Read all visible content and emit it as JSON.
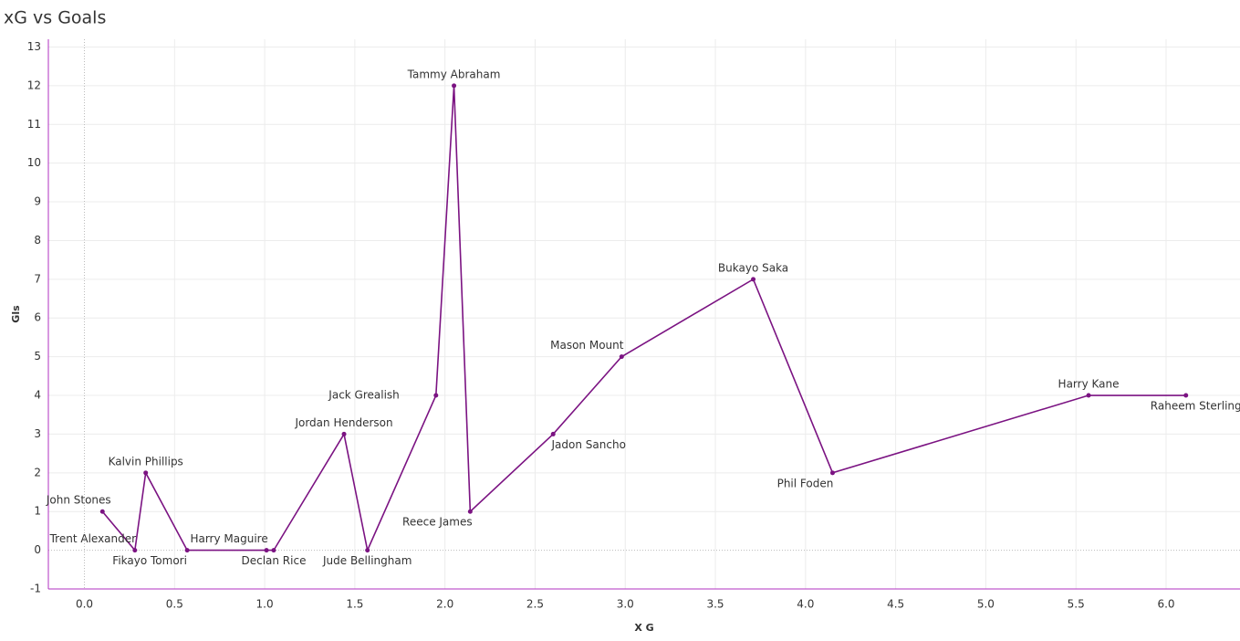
{
  "chart_data": {
    "type": "line",
    "title": "xG vs Goals",
    "x_label": "X G",
    "y_label": "Gls",
    "x": [
      0.1,
      0.28,
      0.34,
      0.57,
      1.01,
      1.05,
      1.44,
      1.57,
      1.95,
      2.05,
      2.14,
      2.6,
      2.98,
      3.71,
      4.15,
      5.57,
      6.11
    ],
    "values": [
      1,
      0,
      2,
      0,
      0,
      0,
      3,
      0,
      4,
      12,
      1,
      3,
      5,
      7,
      2,
      4,
      4
    ],
    "labels": [
      "John Stones",
      "Trent Alexander",
      "Kalvin Phillips",
      "Fikayo Tomori",
      "Harry Maguire",
      "Declan Rice",
      "Jordan Henderson",
      "Jude Bellingham",
      "Jack Grealish",
      "Tammy Abraham",
      "Reece James",
      "Jadon Sancho",
      "Mason Mount",
      "Bukayo Saka",
      "Phil Foden",
      "Harry Kane",
      "Raheem Sterling"
    ],
    "color": "#7b1382",
    "xlim": [
      -0.2,
      6.41
    ],
    "ylim": [
      -1,
      13.2
    ],
    "xticks": [
      {
        "value": 0,
        "label": "0.0"
      },
      0.5,
      {
        "value": 1,
        "label": "1.0"
      },
      1.5,
      {
        "value": 2,
        "label": "2.0"
      },
      2.5,
      {
        "value": 3,
        "label": "3.0"
      },
      3.5,
      {
        "value": 4,
        "label": "4.0"
      },
      4.5,
      {
        "value": 5,
        "label": "5.0"
      },
      5.5,
      {
        "value": 6,
        "label": "6.0"
      }
    ],
    "yticks": [
      -1,
      0,
      1,
      2,
      3,
      4,
      5,
      6,
      7,
      8,
      9,
      10,
      11,
      12,
      13
    ],
    "grid": true
  }
}
